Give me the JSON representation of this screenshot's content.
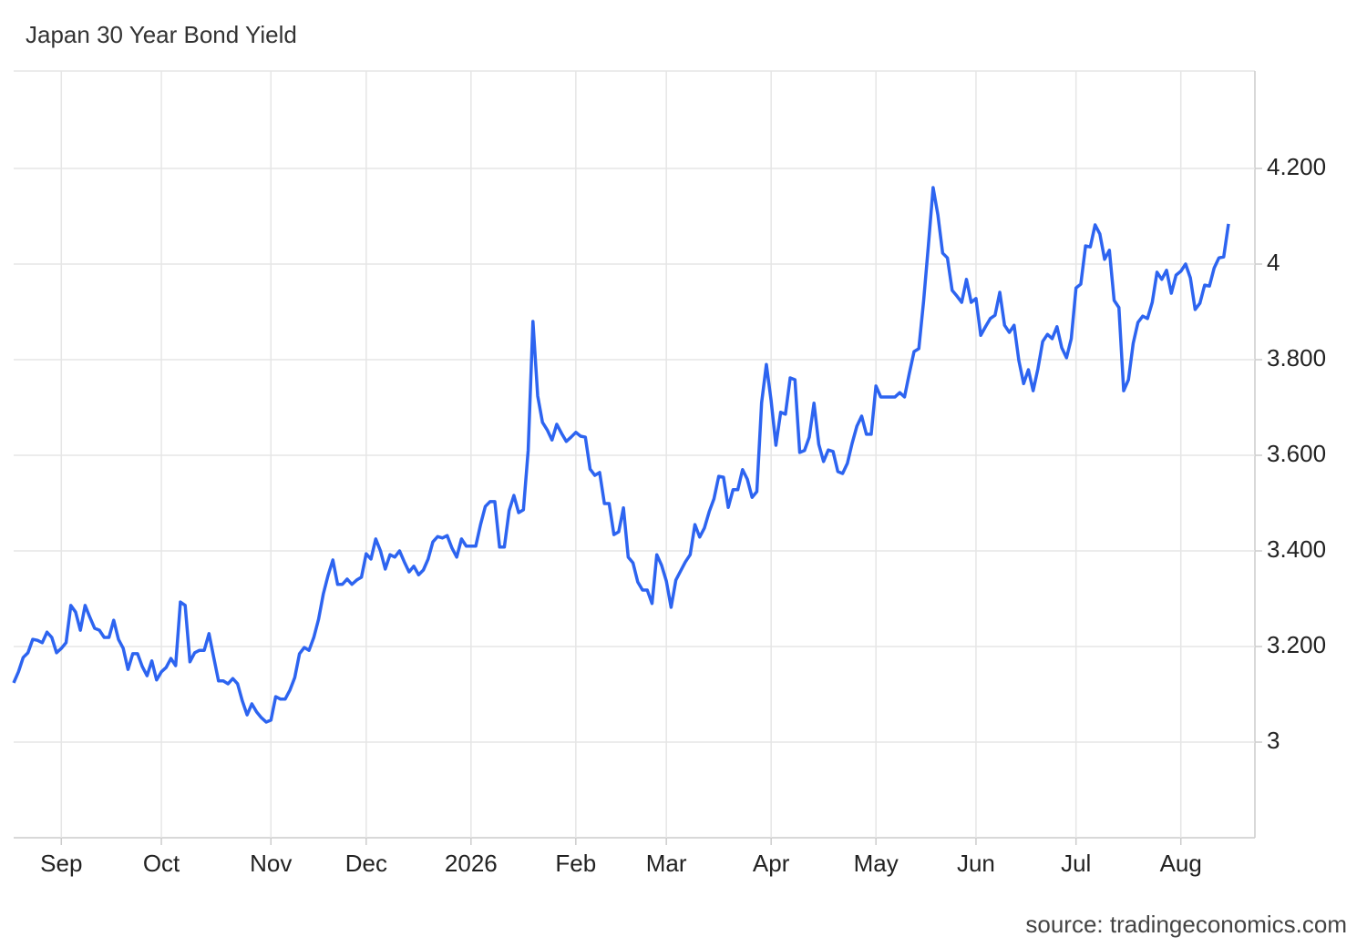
{
  "chart_data": {
    "type": "line",
    "title": "Japan 30 Year Bond Yield",
    "source": "source: tradingeconomics.com",
    "categories": [
      null,
      null,
      null,
      null,
      null,
      null,
      null,
      null,
      null,
      null,
      "Sep",
      null,
      null,
      null,
      null,
      null,
      null,
      null,
      null,
      null,
      null,
      null,
      null,
      null,
      null,
      null,
      null,
      null,
      null,
      null,
      null,
      "Oct",
      null,
      null,
      null,
      null,
      null,
      null,
      null,
      null,
      null,
      null,
      null,
      null,
      null,
      null,
      null,
      null,
      null,
      null,
      null,
      null,
      null,
      null,
      "Nov",
      null,
      null,
      null,
      null,
      null,
      null,
      null,
      null,
      null,
      null,
      null,
      null,
      null,
      null,
      null,
      null,
      null,
      null,
      null,
      "Dec",
      null,
      null,
      null,
      null,
      null,
      null,
      null,
      null,
      null,
      null,
      null,
      null,
      null,
      null,
      null,
      null,
      null,
      null,
      null,
      null,
      null,
      "2026",
      null,
      null,
      null,
      null,
      null,
      null,
      null,
      null,
      null,
      null,
      null,
      null,
      null,
      null,
      null,
      null,
      null,
      null,
      null,
      null,
      null,
      "Feb",
      null,
      null,
      null,
      null,
      null,
      null,
      null,
      null,
      null,
      null,
      null,
      null,
      null,
      null,
      null,
      null,
      null,
      null,
      "Mar",
      null,
      null,
      null,
      null,
      null,
      null,
      null,
      null,
      null,
      null,
      null,
      null,
      null,
      null,
      null,
      null,
      null,
      null,
      null,
      null,
      null,
      "Apr",
      null,
      null,
      null,
      null,
      null,
      null,
      null,
      null,
      null,
      null,
      null,
      null,
      null,
      null,
      null,
      null,
      null,
      null,
      null,
      null,
      null,
      "May",
      null,
      null,
      null,
      null,
      null,
      null,
      null,
      null,
      null,
      null,
      null,
      null,
      null,
      null,
      null,
      null,
      null,
      null,
      null,
      null,
      "Jun",
      null,
      null,
      null,
      null,
      null,
      null,
      null,
      null,
      null,
      null,
      null,
      null,
      null,
      null,
      null,
      null,
      null,
      null,
      null,
      null,
      "Jul",
      null,
      null,
      null,
      null,
      null,
      null,
      null,
      null,
      null,
      null,
      null,
      null,
      null,
      null,
      null,
      null,
      null,
      null,
      null,
      null,
      null,
      "Aug",
      null,
      null,
      null,
      null,
      null,
      null,
      null,
      null,
      null,
      null
    ],
    "values": [
      3.124,
      3.147,
      3.177,
      3.187,
      3.215,
      3.213,
      3.208,
      3.23,
      3.219,
      3.187,
      3.196,
      3.208,
      3.286,
      3.272,
      3.234,
      3.286,
      3.261,
      3.238,
      3.234,
      3.219,
      3.219,
      3.255,
      3.215,
      3.196,
      3.152,
      3.185,
      3.185,
      3.158,
      3.139,
      3.17,
      3.13,
      3.147,
      3.156,
      3.175,
      3.16,
      3.293,
      3.286,
      3.168,
      3.187,
      3.192,
      3.192,
      3.227,
      3.177,
      3.128,
      3.128,
      3.122,
      3.133,
      3.122,
      3.086,
      3.057,
      3.08,
      3.063,
      3.051,
      3.042,
      3.046,
      3.095,
      3.09,
      3.09,
      3.109,
      3.135,
      3.185,
      3.198,
      3.192,
      3.219,
      3.257,
      3.31,
      3.349,
      3.381,
      3.33,
      3.33,
      3.341,
      3.33,
      3.339,
      3.345,
      3.394,
      3.383,
      3.425,
      3.4,
      3.362,
      3.392,
      3.387,
      3.4,
      3.377,
      3.356,
      3.368,
      3.35,
      3.36,
      3.383,
      3.419,
      3.43,
      3.427,
      3.432,
      3.406,
      3.387,
      3.425,
      3.41,
      3.41,
      3.41,
      3.455,
      3.493,
      3.503,
      3.503,
      3.408,
      3.408,
      3.484,
      3.516,
      3.48,
      3.486,
      3.61,
      3.88,
      3.724,
      3.669,
      3.653,
      3.632,
      3.665,
      3.646,
      3.629,
      3.638,
      3.648,
      3.64,
      3.638,
      3.571,
      3.558,
      3.564,
      3.499,
      3.499,
      3.434,
      3.44,
      3.49,
      3.387,
      3.375,
      3.335,
      3.318,
      3.318,
      3.29,
      3.392,
      3.37,
      3.337,
      3.282,
      3.339,
      3.358,
      3.377,
      3.392,
      3.455,
      3.429,
      3.448,
      3.482,
      3.509,
      3.556,
      3.554,
      3.491,
      3.528,
      3.528,
      3.57,
      3.55,
      3.512,
      3.524,
      3.71,
      3.79,
      3.714,
      3.621,
      3.69,
      3.686,
      3.762,
      3.758,
      3.606,
      3.61,
      3.638,
      3.709,
      3.623,
      3.587,
      3.611,
      3.608,
      3.566,
      3.562,
      3.583,
      3.625,
      3.661,
      3.682,
      3.644,
      3.644,
      3.745,
      3.722,
      3.722,
      3.722,
      3.722,
      3.731,
      3.722,
      3.771,
      3.817,
      3.823,
      3.922,
      4.038,
      4.16,
      4.103,
      4.023,
      4.013,
      3.945,
      3.933,
      3.92,
      3.968,
      3.92,
      3.928,
      3.851,
      3.869,
      3.886,
      3.893,
      3.941,
      3.872,
      3.857,
      3.872,
      3.798,
      3.75,
      3.779,
      3.735,
      3.781,
      3.838,
      3.853,
      3.844,
      3.869,
      3.825,
      3.804,
      3.844,
      3.95,
      3.958,
      4.038,
      4.036,
      4.082,
      4.063,
      4.01,
      4.029,
      3.924,
      3.909,
      3.735,
      3.758,
      3.834,
      3.878,
      3.891,
      3.886,
      3.92,
      3.983,
      3.968,
      3.987,
      3.939,
      3.977,
      3.985,
      4.0,
      3.971,
      3.905,
      3.918,
      3.956,
      3.954,
      3.992,
      4.013,
      4.015,
      4.084
    ],
    "color": "#2d64f0",
    "ylim": [
      2.8,
      4.4
    ],
    "yticks": [
      3,
      {
        "value": 3.2,
        "label": "3.200"
      },
      {
        "value": 3.4,
        "label": "3.400"
      },
      {
        "value": 3.6,
        "label": "3.600"
      },
      {
        "value": 3.8,
        "label": "3.800"
      },
      4,
      {
        "value": 4.2,
        "label": "4.200"
      }
    ],
    "grid": true
  }
}
